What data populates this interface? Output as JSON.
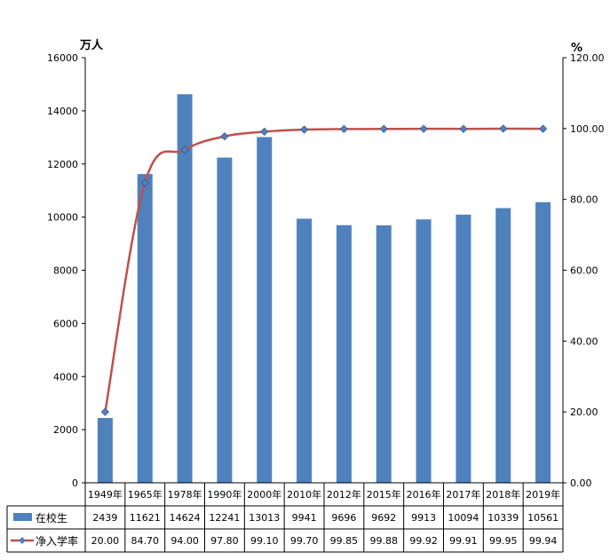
{
  "chart_data": {
    "type": "bar+line",
    "categories": [
      "1949年",
      "1965年",
      "1978年",
      "1990年",
      "2000年",
      "2010年",
      "2012年",
      "2015年",
      "2016年",
      "2017年",
      "2018年",
      "2019年"
    ],
    "series": [
      {
        "name": "在校生",
        "type": "bar",
        "axis": "left",
        "color": "#4F81BD",
        "values": [
          2439,
          11621,
          14624,
          12241,
          13013,
          9941,
          9696,
          9692,
          9913,
          10094,
          10339,
          10561
        ],
        "table_values": [
          "2439",
          "11621",
          "14624",
          "12241",
          "13013",
          "9941",
          "9696",
          "9692",
          "9913",
          "10094",
          "10339",
          "10561"
        ]
      },
      {
        "name": "净入学率",
        "type": "line",
        "axis": "right",
        "color": "#C0504D",
        "marker_color": "#4F81BD",
        "values": [
          20.0,
          84.7,
          94.0,
          97.8,
          99.1,
          99.7,
          99.85,
          99.88,
          99.92,
          99.91,
          99.95,
          99.94
        ],
        "table_values": [
          "20.00",
          "84.70",
          "94.00",
          "97.80",
          "99.10",
          "99.70",
          "99.85",
          "99.88",
          "99.92",
          "99.91",
          "99.95",
          "99.94"
        ]
      }
    ],
    "y_left": {
      "unit_label": "万人",
      "ylim": [
        0,
        16000
      ],
      "ticks": [
        "0",
        "2000",
        "4000",
        "6000",
        "8000",
        "10000",
        "12000",
        "14000",
        "16000"
      ]
    },
    "y_right": {
      "unit_label": "%",
      "ylim": [
        0,
        120
      ],
      "ticks": [
        "0.00",
        "20.00",
        "40.00",
        "60.00",
        "80.00",
        "100.00",
        "120.00"
      ]
    },
    "grid": false,
    "legend": "data-table-below"
  }
}
